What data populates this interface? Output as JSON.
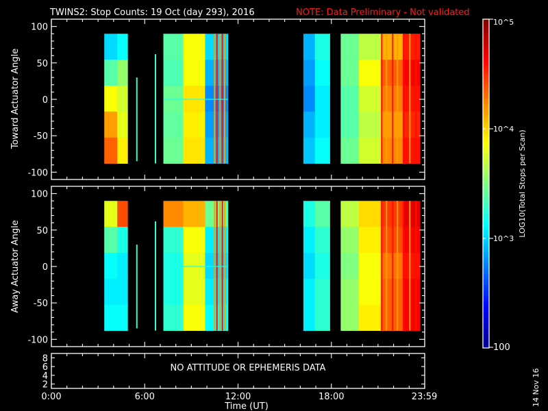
{
  "chart_data": {
    "type": "heatmap",
    "title": "TWINS2: Stop Counts: 19 Oct (day 293), 2016",
    "note": "NOTE: Data Preliminary - Not validated",
    "xlabel": "Time (UT)",
    "x_ticks": [
      "0:00",
      "6:00",
      "12:00",
      "18:00",
      "23:59"
    ],
    "x_range_hours": [
      0,
      24
    ],
    "panels": [
      {
        "name": "toward",
        "ylabel": "Toward Actuator Angle",
        "ylim": [
          -110,
          110
        ],
        "y_ticks": [
          "100",
          "50",
          "0",
          "-50",
          "-100"
        ],
        "angle_range": [
          -88,
          90
        ],
        "data_blocks_hours": [
          [
            3.4,
            4.9
          ],
          [
            5.45,
            5.52
          ],
          [
            6.65,
            6.72
          ],
          [
            7.2,
            11.35
          ],
          [
            16.2,
            17.9
          ],
          [
            18.6,
            23.7
          ]
        ],
        "cell_rows": [
          [
            0.3,
            0.32,
            0.34,
            0.38,
            0.4,
            0.46,
            0.62,
            0.34,
            0.35,
            0.36,
            0.42,
            0.3,
            0.4,
            0.48,
            0.56,
            0.7,
            0.85
          ],
          [
            0.34,
            0.4,
            0.46,
            0.52,
            0.48,
            0.45,
            0.62,
            0.3,
            0.32,
            0.33,
            0.4,
            0.28,
            0.38,
            0.48,
            0.62,
            0.78,
            0.88
          ],
          [
            0.5,
            0.6,
            0.62,
            0.58,
            0.55,
            0.48,
            0.65,
            0.26,
            0.28,
            0.3,
            0.4,
            0.26,
            0.36,
            0.46,
            0.58,
            0.75,
            0.86
          ],
          [
            0.8,
            0.82,
            0.72,
            0.6,
            0.58,
            0.47,
            0.64,
            0.28,
            0.3,
            0.32,
            0.4,
            0.3,
            0.36,
            0.46,
            0.56,
            0.72,
            0.84
          ],
          [
            0.9,
            0.86,
            0.78,
            0.64,
            0.7,
            0.48,
            0.65,
            0.3,
            0.32,
            0.34,
            0.42,
            0.32,
            0.38,
            0.48,
            0.58,
            0.74,
            0.86
          ]
        ],
        "spikes_hours": [
          10.45,
          10.6,
          10.8,
          10.95,
          11.1,
          21.2,
          21.5,
          21.9,
          22.2,
          22.6,
          23.0,
          23.4
        ]
      },
      {
        "name": "away",
        "ylabel": "Away Actuator Angle",
        "ylim": [
          -110,
          110
        ],
        "y_ticks": [
          "100",
          "50",
          "0",
          "-50",
          "-100"
        ],
        "angle_range": [
          -88,
          90
        ],
        "data_blocks_hours": [
          [
            3.4,
            4.9
          ],
          [
            5.45,
            5.52
          ],
          [
            6.65,
            6.72
          ],
          [
            7.2,
            11.35
          ],
          [
            16.2,
            17.9
          ],
          [
            18.6,
            23.7
          ]
        ],
        "cell_rows": [
          [
            0.85,
            0.75,
            0.6,
            0.8,
            0.78,
            0.74,
            0.7,
            0.48,
            0.42,
            0.44,
            0.46,
            0.4,
            0.46,
            0.56,
            0.66,
            0.82,
            0.9
          ],
          [
            0.66,
            0.54,
            0.46,
            0.4,
            0.4,
            0.42,
            0.62,
            0.36,
            0.38,
            0.4,
            0.44,
            0.36,
            0.42,
            0.52,
            0.64,
            0.8,
            0.88
          ],
          [
            0.42,
            0.4,
            0.38,
            0.36,
            0.36,
            0.4,
            0.6,
            0.34,
            0.36,
            0.38,
            0.42,
            0.34,
            0.4,
            0.5,
            0.62,
            0.76,
            0.86
          ],
          [
            0.36,
            0.36,
            0.36,
            0.36,
            0.36,
            0.4,
            0.6,
            0.36,
            0.38,
            0.4,
            0.44,
            0.36,
            0.42,
            0.52,
            0.62,
            0.78,
            0.88
          ],
          [
            0.38,
            0.38,
            0.38,
            0.38,
            0.38,
            0.42,
            0.62,
            0.38,
            0.4,
            0.4,
            0.44,
            0.36,
            0.42,
            0.52,
            0.64,
            0.78,
            0.88
          ]
        ],
        "spikes_hours": [
          10.45,
          10.6,
          10.8,
          10.95,
          11.1,
          21.2,
          21.5,
          21.9,
          22.2,
          22.6,
          23.0,
          23.4
        ]
      }
    ],
    "ephemeris": {
      "message": "NO ATTITUDE OR EPHEMERIS DATA",
      "y_ticks": [
        "8",
        "6",
        "4",
        "2"
      ],
      "ylim": [
        1,
        9
      ]
    },
    "colorbar": {
      "label": "LOG10(Total Stops per Scan)",
      "range": [
        100,
        100000
      ],
      "tick_labels": [
        "10^5",
        "10^4",
        "10^3",
        "100"
      ],
      "tick_values": [
        100000,
        10000,
        1000,
        100
      ]
    },
    "date_stamp": "14 Nov 16"
  }
}
